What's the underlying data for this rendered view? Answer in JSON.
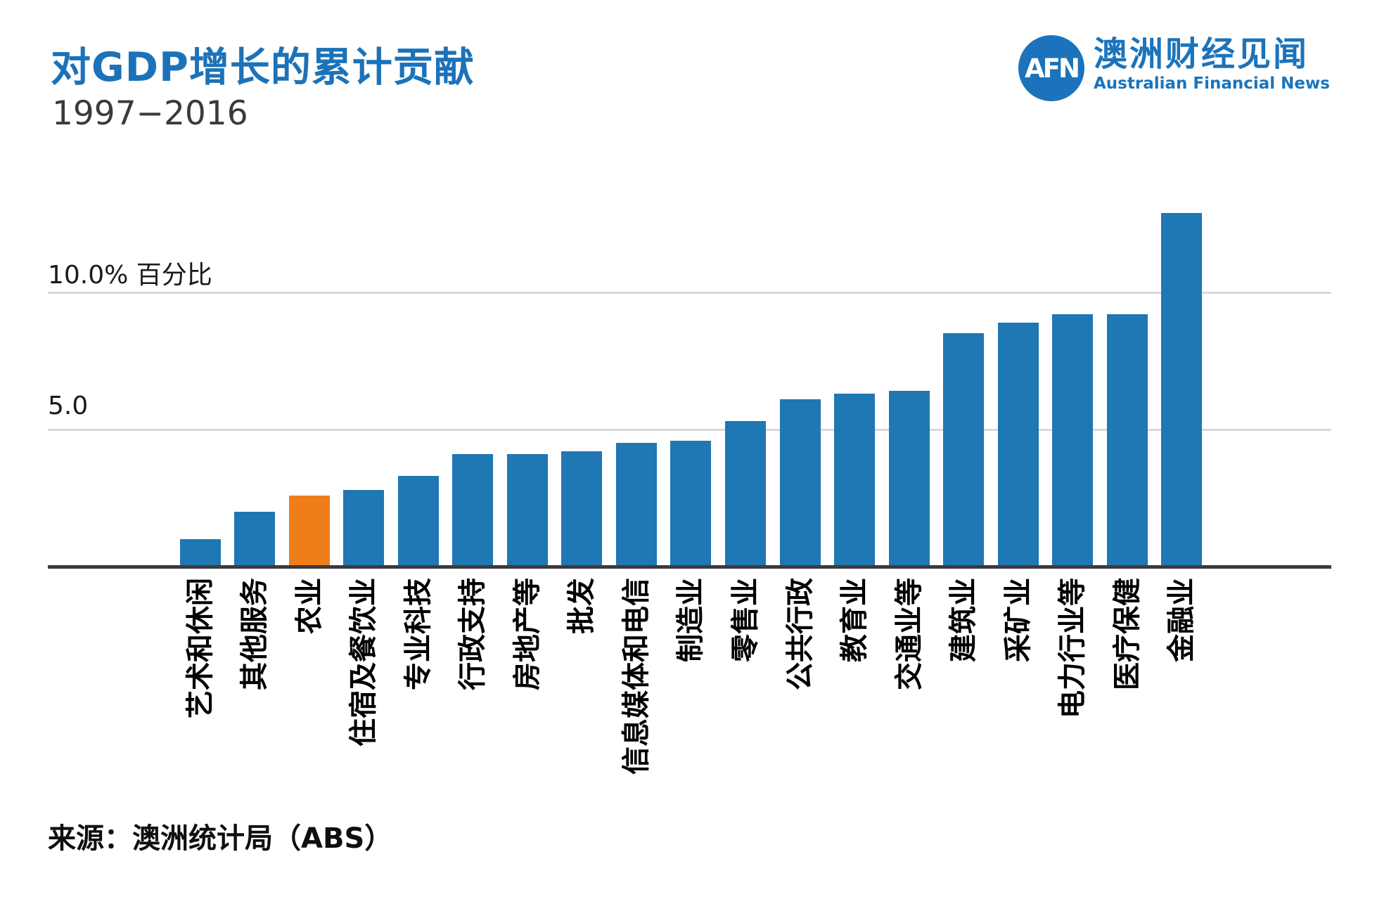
{
  "header": {
    "title": "对GDP增长的累计贡献",
    "subtitle": "1997−2016"
  },
  "logo": {
    "abbr": "AFN",
    "name_zh": "澳洲财经见闻",
    "name_en": "Australian Financial News"
  },
  "chart_data": {
    "type": "bar",
    "title": "对GDP增长的累计贡献",
    "subtitle": "1997−2016",
    "ylabel": "百分比",
    "ylim": [
      0,
      13.5
    ],
    "grid": true,
    "y_ticks": [
      {
        "value": 10.0,
        "label": "10.0% 百分比"
      },
      {
        "value": 5.0,
        "label": "5.0"
      }
    ],
    "categories": [
      "艺术和休闲",
      "其他服务",
      "农业",
      "住宿及餐饮业",
      "专业科技",
      "行政支持",
      "房地产等",
      "批发",
      "信息媒体和电信",
      "制造业",
      "零售业",
      "公共行政",
      "教育业",
      "交通业等",
      "建筑业",
      "采矿业",
      "电力行业等",
      "医疗保健",
      "金融业"
    ],
    "values": [
      1.0,
      2.0,
      2.6,
      2.8,
      3.3,
      4.1,
      4.1,
      4.2,
      4.5,
      4.6,
      5.3,
      6.1,
      6.3,
      6.4,
      8.5,
      8.9,
      9.2,
      9.2,
      12.9
    ],
    "highlight_index": 2,
    "highlight_category": "农业",
    "colors": {
      "bar": "#1f77b4",
      "highlight": "#ef7d1a",
      "gridline": "#d9d9d9",
      "axis": "#3b3b3b",
      "brand": "#1b74bb",
      "title": "#1c72b8"
    }
  },
  "source": {
    "text": "来源：澳洲统计局（ABS）"
  }
}
